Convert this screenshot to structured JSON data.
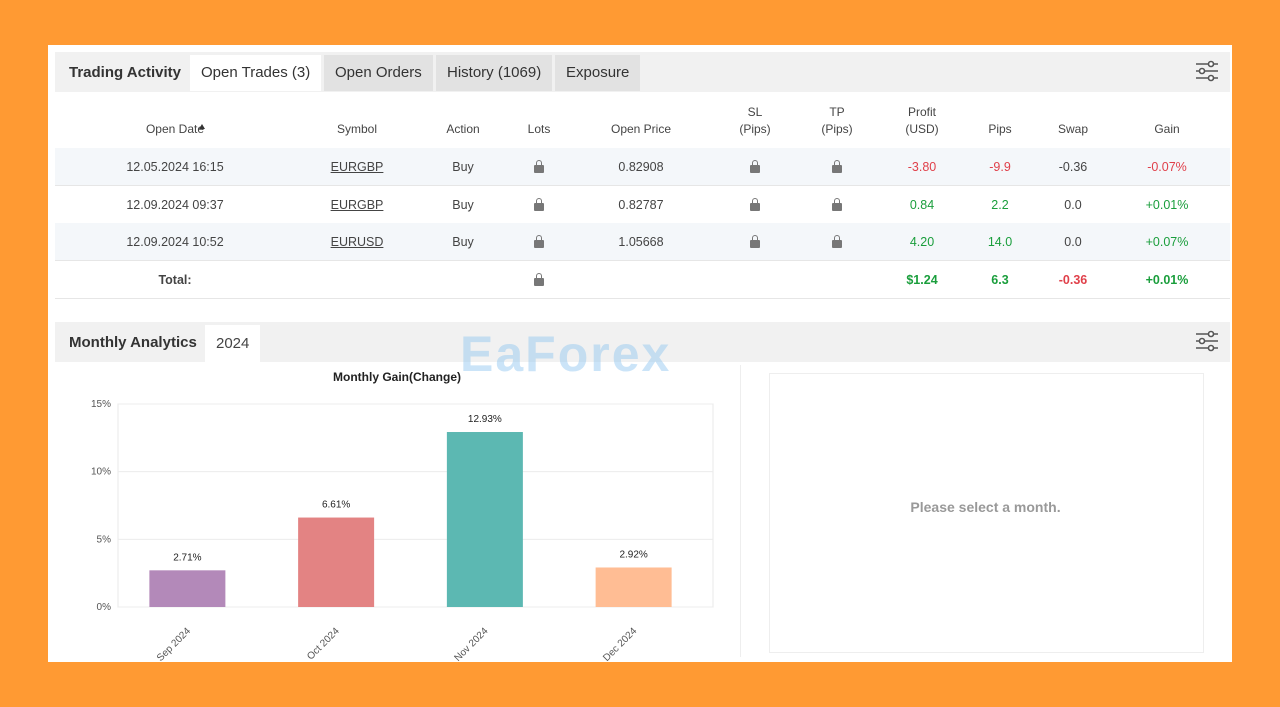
{
  "tabs": {
    "title": "Trading Activity",
    "items": [
      "Open Trades (3)",
      "Open Orders",
      "History (1069)",
      "Exposure"
    ]
  },
  "table": {
    "columns": [
      [
        "Open Date"
      ],
      [
        "Symbol"
      ],
      [
        "Action"
      ],
      [
        "Lots"
      ],
      [
        "Open Price"
      ],
      [
        "SL",
        "(Pips)"
      ],
      [
        "TP",
        "(Pips)"
      ],
      [
        "Profit",
        "(USD)"
      ],
      [
        "Pips"
      ],
      [
        "Swap"
      ],
      [
        "Gain"
      ]
    ],
    "rows": [
      {
        "date": "12.05.2024 16:15",
        "symbol": "EURGBP",
        "action": "Buy",
        "open_price": "0.82908",
        "profit": "-3.80",
        "pips": "-9.9",
        "swap": "-0.36",
        "gain": "-0.07%"
      },
      {
        "date": "12.09.2024 09:37",
        "symbol": "EURGBP",
        "action": "Buy",
        "open_price": "0.82787",
        "profit": "0.84",
        "pips": "2.2",
        "swap": "0.0",
        "gain": "+0.01%"
      },
      {
        "date": "12.09.2024 10:52",
        "symbol": "EURUSD",
        "action": "Buy",
        "open_price": "1.05668",
        "profit": "4.20",
        "pips": "14.0",
        "swap": "0.0",
        "gain": "+0.07%"
      }
    ],
    "total": {
      "label": "Total:",
      "profit": "$1.24",
      "pips": "6.3",
      "swap": "-0.36",
      "gain": "+0.01%"
    }
  },
  "analytics": {
    "title": "Monthly Analytics",
    "year": "2024",
    "message": "Please select a month."
  },
  "watermark": "EaForex",
  "chart_data": {
    "type": "bar",
    "title": "Monthly Gain(Change)",
    "categories": [
      "Sep 2024",
      "Oct 2024",
      "Nov 2024",
      "Dec 2024"
    ],
    "values": [
      2.71,
      6.61,
      12.93,
      2.92
    ],
    "value_labels": [
      "2.71%",
      "6.61%",
      "12.93%",
      "2.92%"
    ],
    "colors": [
      "#b389b9",
      "#e38383",
      "#5cb8b2",
      "#ffbd94"
    ],
    "ylim": [
      0,
      15
    ],
    "yticks": [
      {
        "value": 0,
        "label": "0%"
      },
      {
        "value": 5,
        "label": "5%"
      },
      {
        "value": 10,
        "label": "10%"
      },
      {
        "value": 15,
        "label": "15%"
      }
    ],
    "grid": true
  }
}
